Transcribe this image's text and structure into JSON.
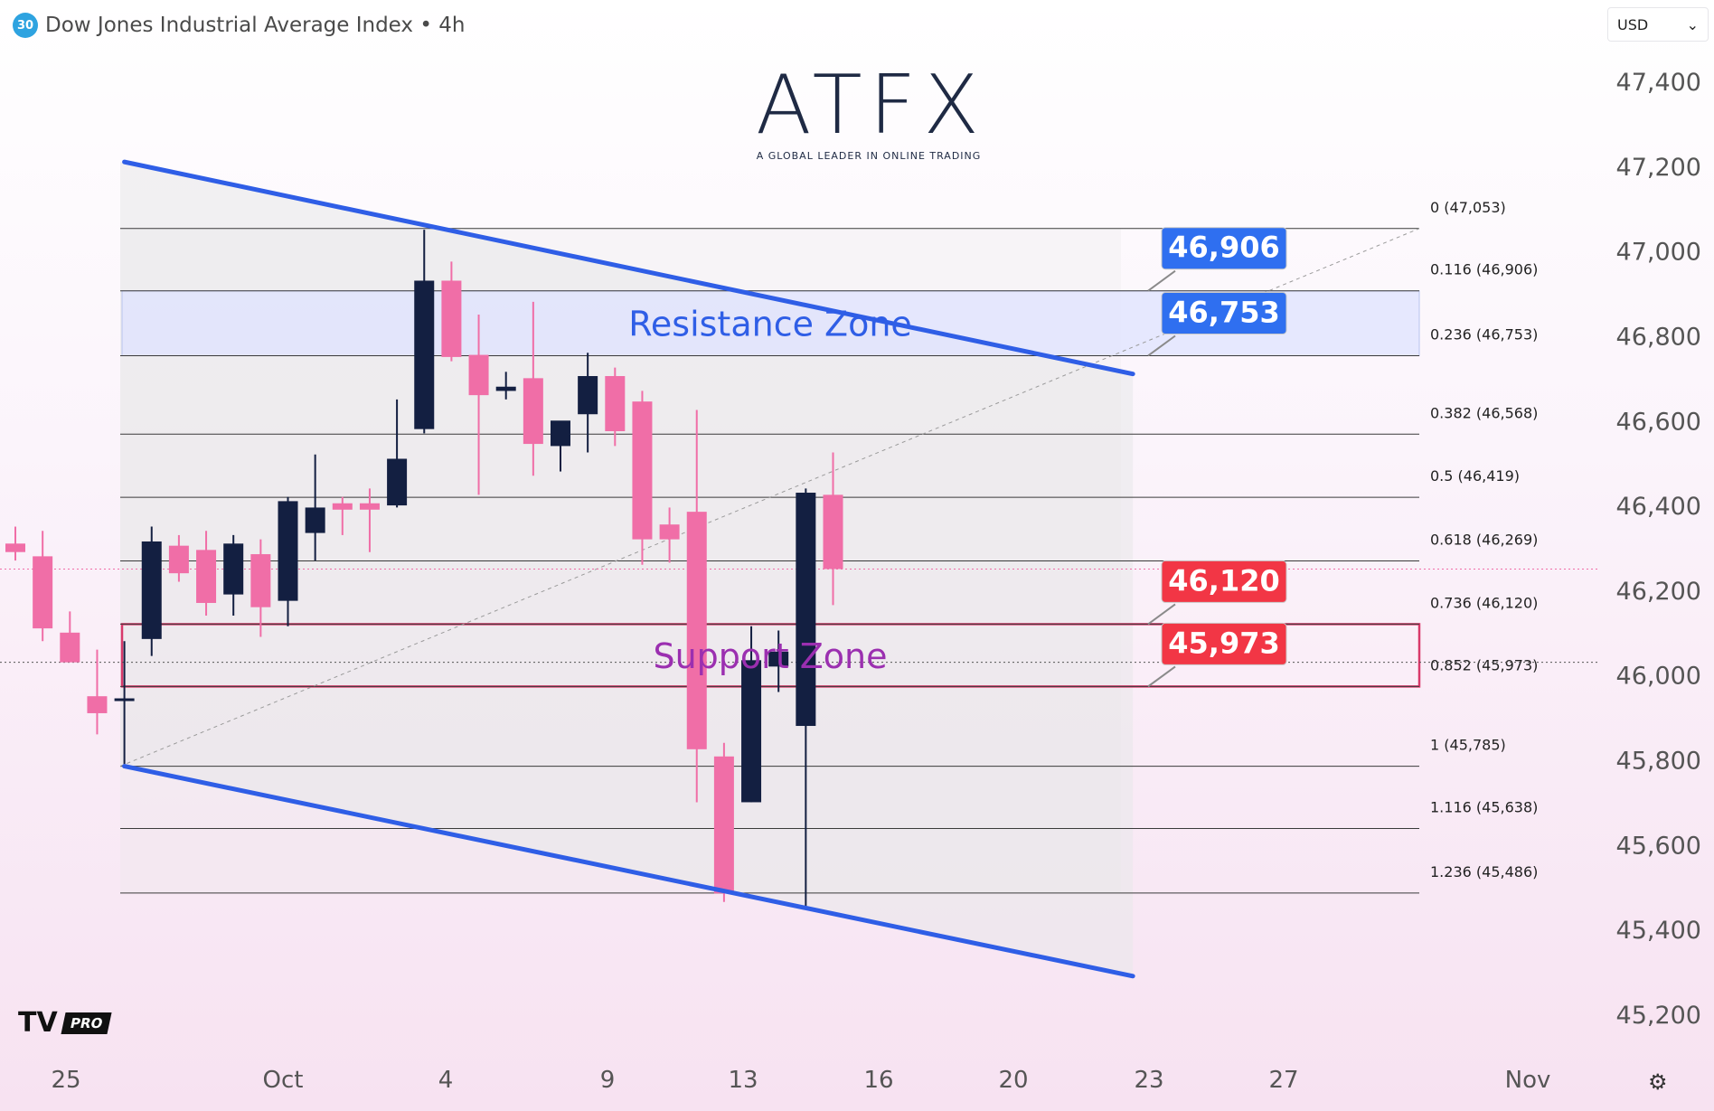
{
  "header": {
    "badge": "30",
    "title": "Dow Jones Industrial Average Index • 4h"
  },
  "currency_selector": {
    "label": "USD",
    "arrow": "⌄"
  },
  "logo": {
    "word": "ATFX",
    "tagline": "A GLOBAL LEADER IN ONLINE TRADING"
  },
  "watermark": {
    "mark": "TV",
    "label": "PRO"
  },
  "settings_icon": "⚙",
  "colors": {
    "bull": "#131f41",
    "bear": "#f06ea7",
    "channel": "#2f5ee6",
    "resistance_fill": "#dfe3ff",
    "support_border": "#d8396a",
    "support_text": "#9b2fb0",
    "resistance_text": "#2f5ee6",
    "label_blue": "#2f6ff0",
    "label_red": "#f23645"
  },
  "chart_data": {
    "type": "candlestick",
    "instrument": "Dow Jones Industrial Average Index",
    "timeframe": "4h",
    "ylim": [
      45100,
      47500
    ],
    "y_ticks": [
      47400,
      47200,
      47000,
      46800,
      46600,
      46400,
      46200,
      46000,
      45800,
      45600,
      45400,
      45200
    ],
    "y_tick_labels": [
      "47,400",
      "47,200",
      "47,000",
      "46,800",
      "46,600",
      "46,400",
      "46,200",
      "46,000",
      "45,800",
      "45,600",
      "45,400",
      "45,200"
    ],
    "x_tick_labels": [
      "25",
      "Oct",
      "4",
      "9",
      "13",
      "16",
      "20",
      "23",
      "27",
      "Nov"
    ],
    "candles": [
      {
        "o": 46310,
        "h": 46350,
        "l": 46270,
        "c": 46290
      },
      {
        "o": 46280,
        "h": 46340,
        "l": 46080,
        "c": 46110
      },
      {
        "o": 46100,
        "h": 46150,
        "l": 46040,
        "c": 46030
      },
      {
        "o": 45950,
        "h": 46060,
        "l": 45860,
        "c": 45910
      },
      {
        "o": 45945,
        "h": 46080,
        "l": 45790,
        "c": 45945
      },
      {
        "o": 46085,
        "h": 46350,
        "l": 46045,
        "c": 46315
      },
      {
        "o": 46305,
        "h": 46330,
        "l": 46220,
        "c": 46240
      },
      {
        "o": 46295,
        "h": 46340,
        "l": 46140,
        "c": 46170
      },
      {
        "o": 46190,
        "h": 46330,
        "l": 46140,
        "c": 46310
      },
      {
        "o": 46285,
        "h": 46320,
        "l": 46090,
        "c": 46160
      },
      {
        "o": 46175,
        "h": 46420,
        "l": 46115,
        "c": 46410
      },
      {
        "o": 46335,
        "h": 46520,
        "l": 46270,
        "c": 46395
      },
      {
        "o": 46405,
        "h": 46420,
        "l": 46330,
        "c": 46390
      },
      {
        "o": 46405,
        "h": 46440,
        "l": 46290,
        "c": 46390
      },
      {
        "o": 46400,
        "h": 46650,
        "l": 46395,
        "c": 46510
      },
      {
        "o": 46580,
        "h": 47050,
        "l": 46570,
        "c": 46930
      },
      {
        "o": 46930,
        "h": 46975,
        "l": 46740,
        "c": 46750
      },
      {
        "o": 46755,
        "h": 46850,
        "l": 46425,
        "c": 46660
      },
      {
        "o": 46670,
        "h": 46715,
        "l": 46650,
        "c": 46680
      },
      {
        "o": 46700,
        "h": 46880,
        "l": 46470,
        "c": 46545
      },
      {
        "o": 46540,
        "h": 46590,
        "l": 46480,
        "c": 46600
      },
      {
        "o": 46615,
        "h": 46760,
        "l": 46525,
        "c": 46705
      },
      {
        "o": 46705,
        "h": 46725,
        "l": 46540,
        "c": 46575
      },
      {
        "o": 46645,
        "h": 46670,
        "l": 46260,
        "c": 46320
      },
      {
        "o": 46355,
        "h": 46395,
        "l": 46265,
        "c": 46320
      },
      {
        "o": 46385,
        "h": 46625,
        "l": 45700,
        "c": 45825
      },
      {
        "o": 45808,
        "h": 45840,
        "l": 45465,
        "c": 45485
      },
      {
        "o": 45700,
        "h": 46115,
        "l": 45700,
        "c": 46035
      },
      {
        "o": 46020,
        "h": 46105,
        "l": 45960,
        "c": 46055
      },
      {
        "o": 45880,
        "h": 46440,
        "l": 45450,
        "c": 46430
      },
      {
        "o": 46425,
        "h": 46525,
        "l": 46165,
        "c": 46250
      }
    ],
    "fib_levels": [
      {
        "label": "0 (47,053)",
        "price": 47053
      },
      {
        "label": "0.116 (46,906)",
        "price": 46906
      },
      {
        "label": "0.236 (46,753)",
        "price": 46753
      },
      {
        "label": "0.382 (46,568)",
        "price": 46568
      },
      {
        "label": "0.5 (46,419)",
        "price": 46419
      },
      {
        "label": "0.618 (46,269)",
        "price": 46269
      },
      {
        "label": "0.736 (46,120)",
        "price": 46120
      },
      {
        "label": "0.852 (45,973)",
        "price": 45973
      },
      {
        "label": "1 (45,785)",
        "price": 45785
      },
      {
        "label": "1.116 (45,638)",
        "price": 45638
      },
      {
        "label": "1.236 (45,486)",
        "price": 45486
      }
    ],
    "zones": {
      "resistance": {
        "label": "Resistance Zone",
        "top": 46906,
        "bottom": 46753
      },
      "support": {
        "label": "Support Zone",
        "top": 46120,
        "bottom": 45973
      }
    },
    "price_labels": [
      {
        "text": "46,906",
        "price": 46906,
        "color": "blue"
      },
      {
        "text": "46,753",
        "price": 46753,
        "color": "blue"
      },
      {
        "text": "46,120",
        "price": 46120,
        "color": "red"
      },
      {
        "text": "45,973",
        "price": 45973,
        "color": "red"
      }
    ],
    "channel": {
      "upper": {
        "start_bar": 4,
        "start_price": 47210,
        "end_bar": 41,
        "end_price": 46710
      },
      "lower": {
        "start_bar": 4,
        "start_price": 45785,
        "end_bar": 41,
        "end_price": 45290
      }
    },
    "grid": false
  }
}
